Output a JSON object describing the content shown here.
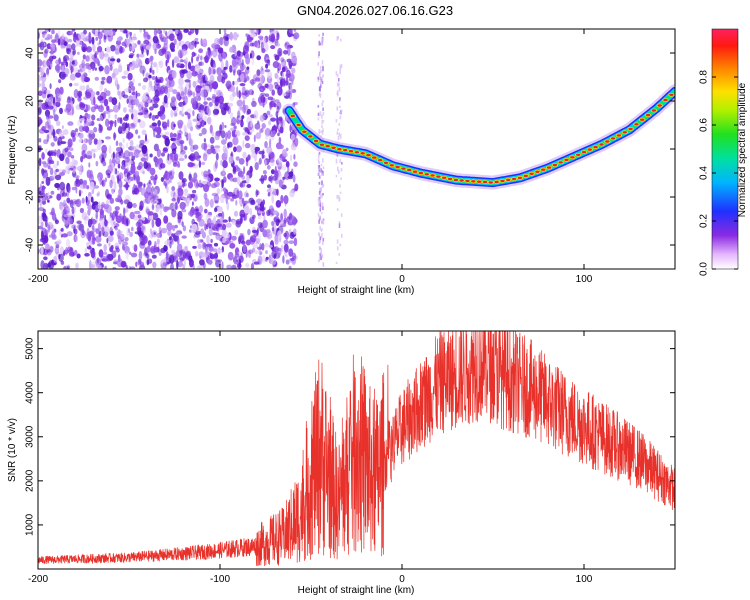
{
  "title": "GN04.2026.027.06.16.G23",
  "top_panel": {
    "ylabel": "Frequency (Hz)",
    "xlabel": "Height of straight line (km)",
    "x_ticks": [
      "-200",
      "-100",
      "0",
      "100"
    ],
    "y_ticks": [
      "40",
      "20",
      "0",
      "-20",
      "-40"
    ],
    "colorbar": {
      "label": "Normalized spectral amplitude",
      "ticks": [
        "0.0",
        "0.2",
        "0.4",
        "0.6",
        "0.8"
      ]
    }
  },
  "bottom_panel": {
    "ylabel": "SNR (10 * v/v)",
    "xlabel": "Height of straight line (km)",
    "x_ticks": [
      "-200",
      "-100",
      "0",
      "100"
    ],
    "y_ticks": [
      "1000",
      "2000",
      "3000",
      "4000",
      "5000"
    ]
  },
  "chart_data": [
    {
      "type": "heatmap",
      "title": "GN04.2026.027.06.16.G23",
      "xlabel": "Height of straight line (km)",
      "ylabel": "Frequency (Hz)",
      "xlim": [
        -200,
        150
      ],
      "ylim": [
        -50,
        50
      ],
      "colorbar_range": [
        0.0,
        1.0
      ],
      "noise_region_x": [
        -200,
        -58
      ],
      "ridge": {
        "x": [
          -62,
          -55,
          -45,
          -35,
          -20,
          -5,
          10,
          30,
          50,
          65,
          80,
          95,
          110,
          125,
          140,
          150
        ],
        "y": [
          16,
          8,
          2,
          0,
          -2,
          -7,
          -10,
          -13,
          -14,
          -12,
          -8,
          -3,
          2,
          8,
          17,
          24
        ]
      },
      "colors": {
        "noise": "#7a2fe0",
        "ridge_outer": "#1a30ff",
        "ridge_mid": "#00e676",
        "ridge_core": "#e8261c"
      }
    },
    {
      "type": "line",
      "xlabel": "Height of straight line (km)",
      "ylabel": "SNR (10 * v/v)",
      "xlim": [
        -200,
        150
      ],
      "ylim": [
        0,
        5400
      ],
      "envelope": {
        "x": [
          -200,
          -150,
          -110,
          -80,
          -65,
          -55,
          -45,
          -35,
          -25,
          -15,
          0,
          20,
          45,
          55,
          70,
          90,
          110,
          130,
          150
        ],
        "y": [
          200,
          260,
          380,
          520,
          750,
          1300,
          2700,
          1500,
          2800,
          2000,
          3200,
          4200,
          4700,
          4400,
          4100,
          3500,
          3000,
          2500,
          1800
        ]
      },
      "color": "#e8312a"
    }
  ]
}
